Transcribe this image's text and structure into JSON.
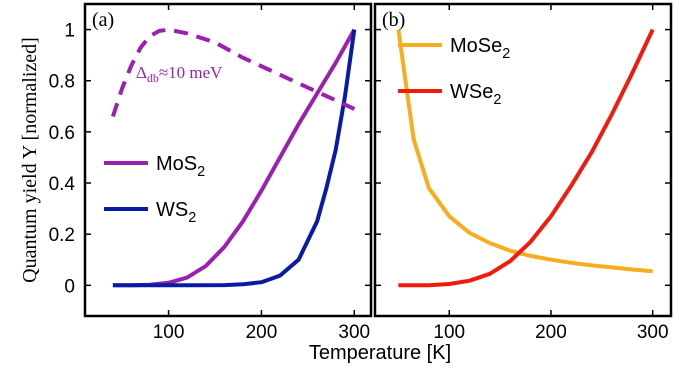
{
  "chart_data": [
    {
      "type": "line",
      "panel_label": "(a)",
      "xlabel": "Temperature [K]",
      "ylabel": "Quantum yield Y [normalized]",
      "xlim": [
        10,
        318
      ],
      "ylim": [
        -0.12,
        1.1
      ],
      "xticks": [
        100,
        200,
        300
      ],
      "yticks": [
        0,
        0.2,
        0.4,
        0.6,
        0.8,
        1
      ],
      "ytick_labels": [
        "0",
        "0.2",
        "0.4",
        "0.6",
        "0.8",
        "1"
      ],
      "xtick_labels": [
        "100",
        "200",
        "300"
      ],
      "annotation": {
        "delta": "Δ",
        "subscript": "db",
        "rest": "≈10 meV",
        "color": "#9b1fb0"
      },
      "series": [
        {
          "name_base": "MoS",
          "name_sub": "2",
          "color": "#9b1fb0",
          "dash": "solid",
          "legend": true,
          "x": [
            40,
            60,
            80,
            100,
            120,
            140,
            160,
            180,
            200,
            220,
            240,
            260,
            280,
            300
          ],
          "y": [
            0,
            0,
            0.002,
            0.01,
            0.03,
            0.075,
            0.15,
            0.25,
            0.37,
            0.5,
            0.63,
            0.75,
            0.87,
            1.0
          ]
        },
        {
          "name_base": "WS",
          "name_sub": "2",
          "color": "#0a1aa8",
          "dash": "solid",
          "legend": true,
          "x": [
            40,
            80,
            120,
            160,
            180,
            200,
            220,
            240,
            260,
            270,
            280,
            290,
            300
          ],
          "y": [
            0,
            0,
            0,
            0.001,
            0.004,
            0.012,
            0.038,
            0.1,
            0.25,
            0.38,
            0.53,
            0.74,
            1.0
          ]
        },
        {
          "color": "#9b1fb0",
          "dash": "dashed",
          "legend": false,
          "x": [
            40,
            50,
            60,
            70,
            80,
            90,
            100,
            120,
            150,
            180,
            210,
            240,
            270,
            300
          ],
          "y": [
            0.66,
            0.77,
            0.86,
            0.93,
            0.975,
            0.995,
            1.0,
            0.985,
            0.95,
            0.89,
            0.84,
            0.79,
            0.74,
            0.69
          ]
        }
      ]
    },
    {
      "type": "line",
      "panel_label": "(b)",
      "xlabel": "Temperature [K]",
      "xlim": [
        27,
        318
      ],
      "ylim": [
        -0.12,
        1.1
      ],
      "xticks": [
        100,
        200,
        300
      ],
      "xtick_labels": [
        "100",
        "200",
        "300"
      ],
      "series": [
        {
          "name_base": "MoSe",
          "name_sub": "2",
          "color": "#f9ad1e",
          "dash": "solid",
          "legend": true,
          "x": [
            50,
            65,
            80,
            100,
            120,
            140,
            160,
            180,
            200,
            220,
            240,
            260,
            280,
            300
          ],
          "y": [
            1.0,
            0.57,
            0.38,
            0.27,
            0.205,
            0.165,
            0.135,
            0.115,
            0.1,
            0.088,
            0.078,
            0.07,
            0.062,
            0.055
          ]
        },
        {
          "name_base": "WSe",
          "name_sub": "2",
          "color": "#f21a0d",
          "dash": "solid",
          "legend": true,
          "x": [
            50,
            80,
            100,
            120,
            140,
            160,
            180,
            200,
            220,
            240,
            260,
            280,
            300
          ],
          "y": [
            0,
            0,
            0.005,
            0.018,
            0.045,
            0.095,
            0.17,
            0.27,
            0.39,
            0.52,
            0.67,
            0.83,
            1.0
          ]
        }
      ]
    }
  ]
}
